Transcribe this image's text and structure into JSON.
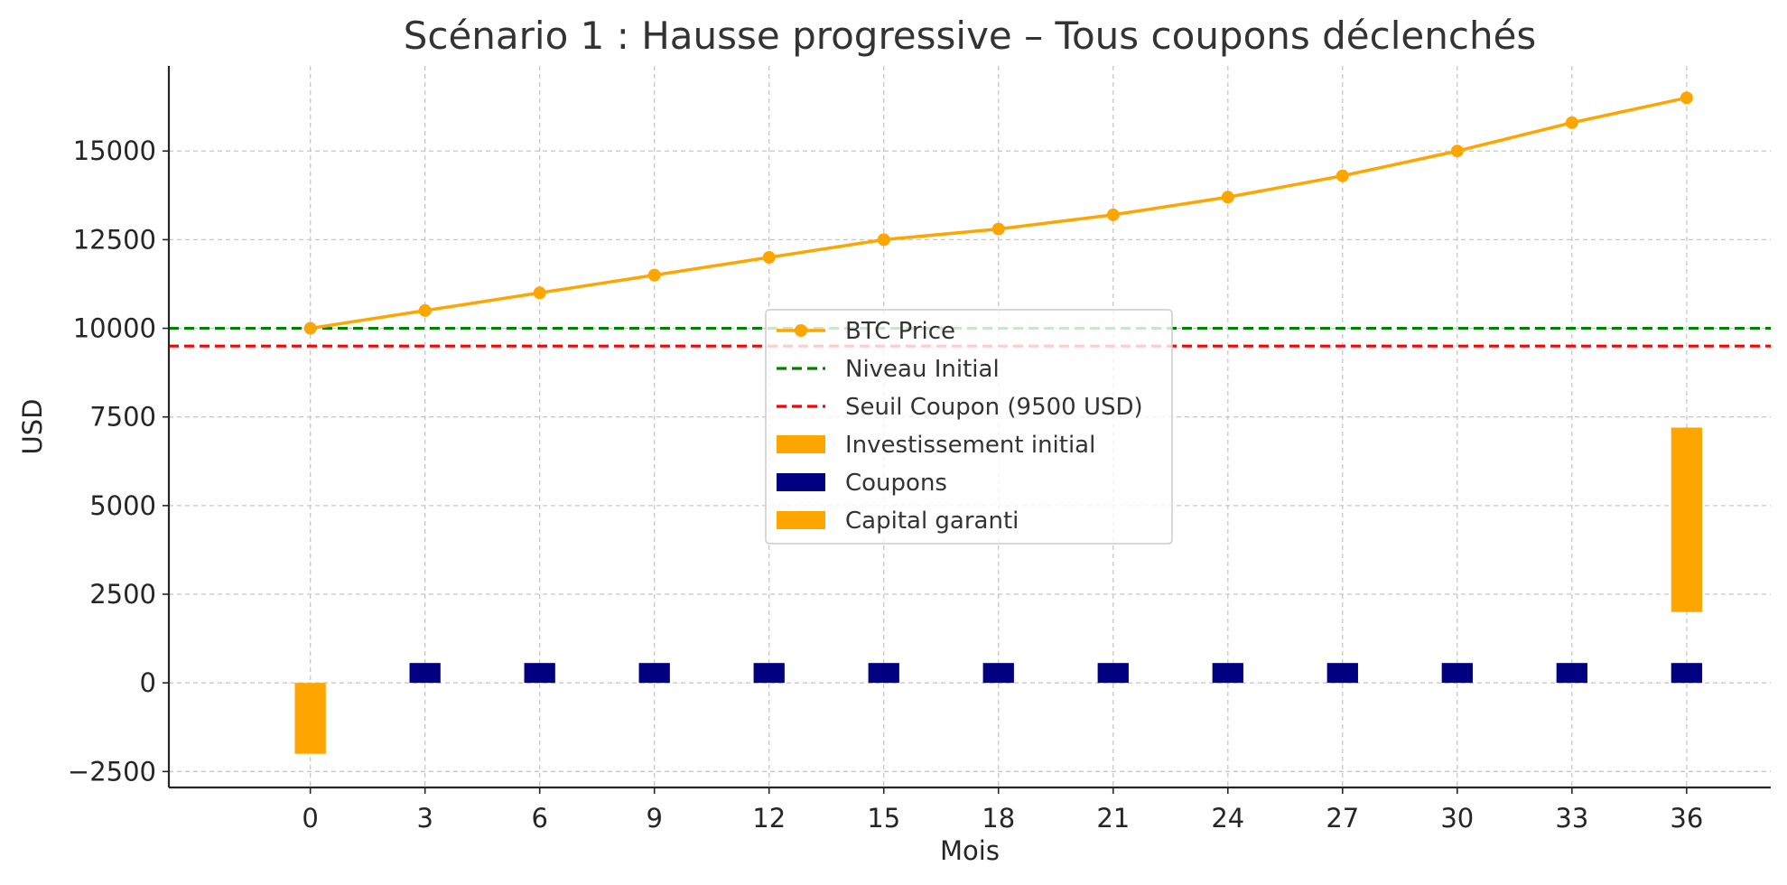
{
  "chart_data": {
    "type": "bar+line",
    "title": "Scénario 1 : Hausse progressive – Tous coupons déclenchés",
    "xlabel": "Mois",
    "ylabel": "USD",
    "x_ticks": [
      0,
      3,
      6,
      9,
      12,
      15,
      18,
      21,
      24,
      27,
      30,
      33,
      36
    ],
    "y_ticks": [
      -2500,
      0,
      2500,
      5000,
      7500,
      10000,
      12500,
      15000
    ],
    "xlim": [
      -3.7,
      38.2
    ],
    "ylim": [
      -2950,
      17400
    ],
    "grid": true,
    "legend_position": "center",
    "series": [
      {
        "name": "BTC Price",
        "kind": "line",
        "color": "#FFA500",
        "x": [
          0,
          3,
          6,
          9,
          12,
          15,
          18,
          21,
          24,
          27,
          30,
          33,
          36
        ],
        "y": [
          10000,
          10500,
          11000,
          11500,
          12000,
          12500,
          12800,
          13200,
          13700,
          14300,
          15000,
          15800,
          16500
        ]
      },
      {
        "name": "Niveau Initial",
        "kind": "hline",
        "color": "#008000",
        "y": 10000
      },
      {
        "name": "Seuil Coupon (9500 USD)",
        "kind": "hline",
        "color": "#FF0000",
        "y": 9500
      },
      {
        "name": "Investissement initial",
        "kind": "bar",
        "color": "#FFA500",
        "bars": [
          {
            "x": 0,
            "bottom": -2000,
            "top": 0
          }
        ]
      },
      {
        "name": "Coupons",
        "kind": "bar",
        "color": "#000080",
        "bars": [
          {
            "x": 3,
            "bottom": 0,
            "top": 560
          },
          {
            "x": 6,
            "bottom": 0,
            "top": 560
          },
          {
            "x": 9,
            "bottom": 0,
            "top": 560
          },
          {
            "x": 12,
            "bottom": 0,
            "top": 560
          },
          {
            "x": 15,
            "bottom": 0,
            "top": 560
          },
          {
            "x": 18,
            "bottom": 0,
            "top": 560
          },
          {
            "x": 21,
            "bottom": 0,
            "top": 560
          },
          {
            "x": 24,
            "bottom": 0,
            "top": 560
          },
          {
            "x": 27,
            "bottom": 0,
            "top": 560
          },
          {
            "x": 30,
            "bottom": 0,
            "top": 560
          },
          {
            "x": 33,
            "bottom": 0,
            "top": 560
          },
          {
            "x": 36,
            "bottom": 0,
            "top": 560
          }
        ]
      },
      {
        "name": "Capital garanti",
        "kind": "bar",
        "color": "#FFA500",
        "bars": [
          {
            "x": 36,
            "bottom": 2000,
            "top": 7200
          }
        ]
      }
    ]
  }
}
